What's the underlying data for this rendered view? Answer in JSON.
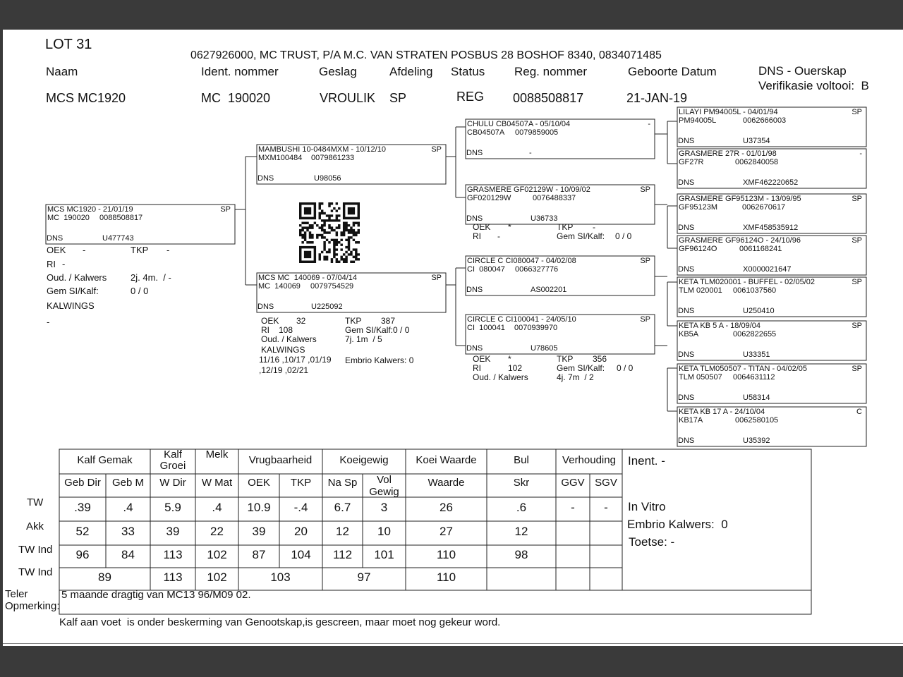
{
  "header": {
    "lot": "LOT 31",
    "owner": "0627926000, MC TRUST, P/A M.C. VAN STRATEN POSBUS 28 BOSHOF 8340, 0834071485",
    "labels": [
      "Naam",
      "Ident. nommer",
      "Geslag",
      "Afdeling",
      "Status",
      "Reg. nommer",
      "Geboorte Datum"
    ],
    "values": [
      "MCS MC1920",
      "MC  190020",
      "VROULIK",
      "SP",
      "REG",
      "0088508817",
      "21-JAN-19"
    ],
    "dns": "DNS - Ouerskap",
    "verification": "Verifikasie voltooi:  B"
  },
  "pedigree": {
    "dns_label": "DNS",
    "boxes": [
      {
        "title": "MCS MC1920 - 21/01/19",
        "tag": "SP",
        "id": "MC  190020",
        "reg": "0088508817",
        "dns": "U477743"
      },
      {
        "title": "MAMBUSHI 10-0484MXM - 10/12/10",
        "tag": "SP",
        "id": "MXM100484",
        "reg": "0079861233",
        "dns": "U98056"
      },
      {
        "title": "MCS MC  140069 - 07/04/14",
        "tag": "SP",
        "id": "MC  140069",
        "reg": "0079754529",
        "dns": "U225092"
      },
      {
        "title": "CHULU CB04507A - 05/10/04",
        "tag": "-",
        "id": "CB04507A",
        "reg": "0079859005",
        "dns": "-"
      },
      {
        "title": "GRASMERE GF02129W - 10/09/02",
        "tag": "SP",
        "id": "GF020129W",
        "reg": "0076488337",
        "dns": "U36733"
      },
      {
        "title": "CIRCLE C CI080047 - 04/02/08",
        "tag": "SP",
        "id": "CI  080047",
        "reg": "0066327776",
        "dns": "AS002201"
      },
      {
        "title": "CIRCLE C CI100041 - 24/05/10",
        "tag": "SP",
        "id": "CI  100041",
        "reg": "0070939970",
        "dns": "U78605"
      },
      {
        "title": "LILAYI PM94005L - 04/01/94",
        "tag": "SP",
        "id": "PM94005L",
        "reg": "0062666003",
        "dns": "U37354"
      },
      {
        "title": "GRASMERE 27R - 01/01/98",
        "tag": "-",
        "id": "GF27R",
        "reg": "0062840058",
        "dns": "XMF462220652"
      },
      {
        "title": "GRASMERE GF95123M - 13/09/95",
        "tag": "SP",
        "id": "GF95123M",
        "reg": "0062670617",
        "dns": "XMF458535912"
      },
      {
        "title": "GRASMERE GF96124O - 24/10/96",
        "tag": "SP",
        "id": "GF96124O",
        "reg": "0061168241",
        "dns": "X0000021647"
      },
      {
        "title": "KETA TLM020001 - BUFFEL - 02/05/02",
        "tag": "SP",
        "id": "TLM 020001",
        "reg": "0061037560",
        "dns": "U250410"
      },
      {
        "title": "KETA KB 5 A - 18/09/04",
        "tag": "SP",
        "id": "KB5A",
        "reg": "0062822655",
        "dns": "U33351"
      },
      {
        "title": "KETA TLM050507 - TITAN - 04/02/05",
        "tag": "SP",
        "id": "TLM 050507",
        "reg": "0064631112",
        "dns": "U58314"
      },
      {
        "title": "KETA KB 17 A - 24/10/04",
        "tag": "C",
        "id": "KB17A",
        "reg": "0062580105",
        "dns": "U35392"
      }
    ],
    "animal_notes": [
      "OEK",
      "-",
      "TKP",
      "-",
      "RI",
      "-",
      "Oud. / Kalwers",
      "2j. 4m.  / -",
      "Gem SI/Kalf:",
      "0 / 0",
      "KALWINGS",
      "-"
    ],
    "dam_notes": [
      "OEK",
      "32",
      "TKP",
      "387",
      "RI",
      "108",
      "Gem SI/Kalf:0 / 0",
      "Oud. / Kalwers",
      "7j. 1m  / 5",
      "KALWINGS",
      "11/16 ,10/17 ,01/19",
      ",12/19 ,02/21",
      "Embrio Kalwers: 0"
    ],
    "box4_notes": [
      "OEK",
      "*",
      "TKP",
      "-",
      "RI",
      "-",
      "Gem SI/Kalf:",
      "0 / 0"
    ],
    "box6_notes": [
      "OEK",
      "*",
      "TKP",
      "356",
      "RI",
      "102",
      "Gem SI/Kalf:",
      "0 / 0",
      "Oud. / Kalwers",
      "4j. 7m  / 2"
    ]
  },
  "table": {
    "groups": [
      "Kalf Gemak",
      "Kalf Groei",
      "Melk",
      "Vrugbaarheid",
      "Koeigewig",
      "Koei Waarde",
      "Bul",
      "Verhouding"
    ],
    "columns": [
      "Geb Dir",
      "Geb M",
      "W Dir",
      "W Mat",
      "OEK",
      "TKP",
      "Na Sp",
      "Vol Gewig",
      "Waarde",
      "Skr",
      "GGV",
      "SGV"
    ],
    "row_labels": [
      "TW",
      "Akk",
      "TW Ind",
      "TW Ind"
    ],
    "rows": [
      [
        ".39",
        ".4",
        "5.9",
        ".4",
        "10.9",
        "-.4",
        "6.7",
        "3",
        "26",
        ".6",
        "-",
        "-"
      ],
      [
        "52",
        "33",
        "39",
        "22",
        "39",
        "20",
        "12",
        "10",
        "27",
        "12"
      ],
      [
        "96",
        "84",
        "113",
        "102",
        "87",
        "104",
        "112",
        "101",
        "110",
        "98"
      ],
      [
        "89",
        "113",
        "102",
        "103",
        "97",
        "110"
      ]
    ],
    "side": [
      "Inent. -",
      "In Vitro",
      "Embrio Kalwers:  0",
      "Toetse: -"
    ],
    "remark_label": [
      "Teler",
      "Opmerking:"
    ],
    "remark": "5 maande dragtig van MC13 96/M09 02."
  },
  "footer": "Kalf aan voet  is onder beskerming van Genootskap,is gescreen, maar moet nog gekeur word."
}
